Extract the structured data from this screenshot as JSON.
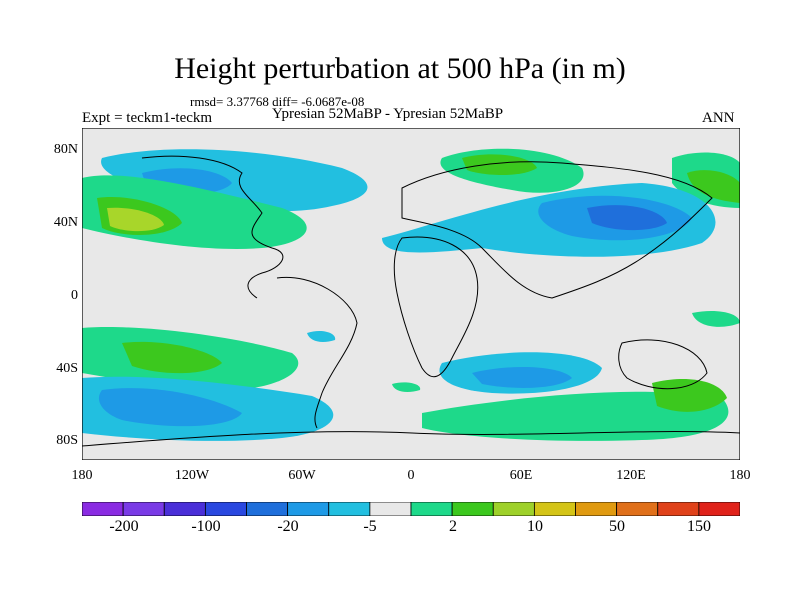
{
  "title": "Height perturbation at 500 hPa (in m)",
  "stats": "rmsd= 3.37768 diff= -6.0687e-08",
  "left_label": "Expt = teckm1-teckm",
  "center_label": "Ypresian  52MaBP - Ypresian  52MaBP",
  "right_label": "ANN",
  "lat_labels": [
    "80N",
    "40N",
    "0",
    "40S",
    "80S"
  ],
  "lon_labels": [
    "180",
    "120W",
    "60W",
    "0",
    "60E",
    "120E",
    "180"
  ],
  "colorbar": {
    "colors": [
      "#8a2be2",
      "#7a3be6",
      "#4a2fd8",
      "#2a48e0",
      "#1f6fdb",
      "#1e9ae6",
      "#22bfe0",
      "#e8e8e8",
      "#1ed98a",
      "#3cc81e",
      "#9ed12a",
      "#d4c417",
      "#e09a10",
      "#e0701a",
      "#e0421a",
      "#e0221a"
    ],
    "labels": [
      "-200",
      "-100",
      "-20",
      "-5",
      "2",
      "10",
      "50",
      "150"
    ]
  },
  "map": {
    "land_color": "#e8e8e8",
    "colors": {
      "pos1": "#1ed98a",
      "pos2": "#3cc81e",
      "pos3": "#a8d62a",
      "neg1": "#22bfe0",
      "neg2": "#1e9ae6",
      "neg3": "#1f6fdb"
    }
  }
}
